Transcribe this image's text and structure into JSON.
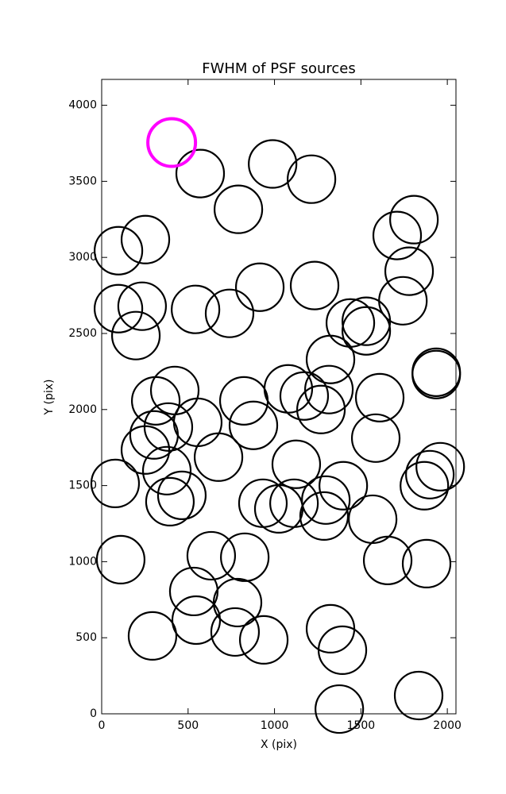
{
  "chart_data": {
    "type": "scatter",
    "title": "FWHM of PSF sources",
    "x_label": "X (pix)",
    "y_label": "Y (pix)",
    "xlim": [
      0,
      2050
    ],
    "ylim": [
      0,
      4170
    ],
    "xticks": [
      0,
      500,
      1000,
      1500,
      2000
    ],
    "yticks": [
      0,
      500,
      1000,
      1500,
      2000,
      2500,
      3000,
      3500,
      4000
    ],
    "series": [
      {
        "color": "#000000",
        "x": [
          570,
          989,
          1214,
          791,
          97,
          253,
          1807,
          1710,
          1779,
          1743,
          97,
          234,
          198,
          543,
          740,
          915,
          1232,
          1439,
          1531,
          1531,
          1324,
          1315,
          1269,
          1172,
          1080,
          1609,
          1586,
          1936,
          1936,
          423,
          313,
          303,
          386,
          556,
          823,
          878,
          253,
          377,
          676,
          78,
          395,
          464,
          1126,
          933,
          1025,
          1113,
          1297,
          1287,
          1398,
          1568,
          1959,
          1899,
          1867,
          110,
          634,
          828,
          1655,
          1880,
          533,
          786,
          547,
          772,
          938,
          294,
          1324,
          1393,
          1375,
          1834
        ],
        "y": [
          3551,
          3614,
          3514,
          3316,
          3044,
          3117,
          3248,
          3144,
          2909,
          2715,
          2663,
          2679,
          2486,
          2658,
          2632,
          2804,
          2815,
          2569,
          2580,
          2517,
          2329,
          2131,
          2000,
          2089,
          2136,
          2078,
          1812,
          2245,
          2230,
          2125,
          2057,
          1833,
          1885,
          1916,
          2057,
          1896,
          1734,
          1598,
          1687,
          1514,
          1394,
          1436,
          1640,
          1384,
          1347,
          1384,
          1405,
          1300,
          1499,
          1279,
          1624,
          1572,
          1499,
          1013,
          1039,
          1029,
          1008,
          987,
          804,
          731,
          616,
          538,
          486,
          512,
          559,
          418,
          31,
          120
        ]
      },
      {
        "color": "#ff00ff",
        "x": [
          405
        ],
        "y": [
          3755
        ]
      }
    ]
  }
}
